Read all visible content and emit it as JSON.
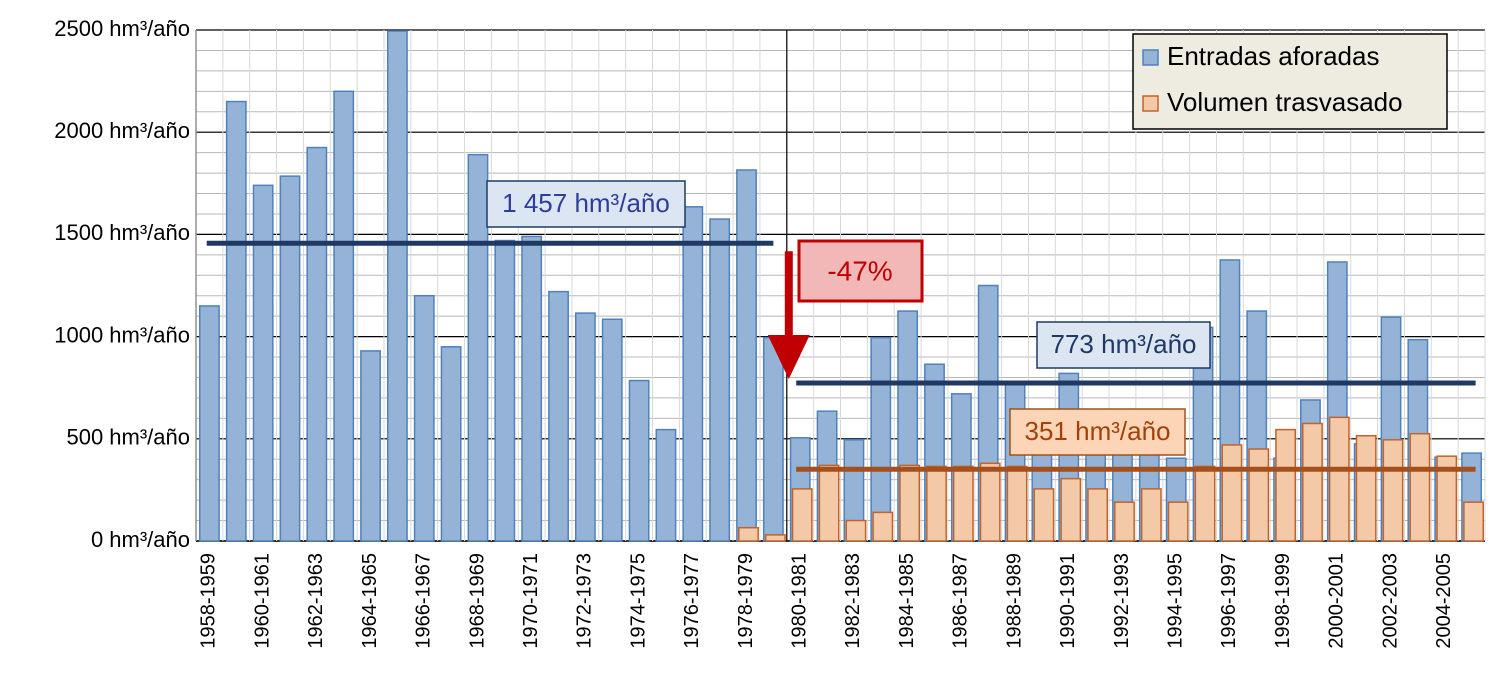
{
  "chart_data": {
    "type": "bar",
    "categories": [
      "1958-1959",
      null,
      "1960-1961",
      null,
      "1962-1963",
      null,
      "1964-1965",
      null,
      "1966-1967",
      null,
      "1968-1969",
      null,
      "1970-1971",
      null,
      "1972-1973",
      null,
      "1974-1975",
      null,
      "1976-1977",
      null,
      "1978-1979",
      null,
      "1980-1981",
      null,
      "1982-1983",
      null,
      "1984-1985",
      null,
      "1986-1987",
      null,
      "1988-1989",
      null,
      "1990-1991",
      null,
      "1992-1993",
      null,
      "1994-1995",
      null,
      "1996-1997",
      null,
      "1998-1999",
      null,
      "2000-2001",
      null,
      "2002-2003",
      null,
      "2004-2005",
      null
    ],
    "series": [
      {
        "name": "Entradas aforadas",
        "color": "#95b3d7",
        "stroke": "#4f81bd",
        "values": [
          1150,
          2150,
          1740,
          1785,
          1925,
          2200,
          930,
          2495,
          1200,
          950,
          1890,
          1470,
          1490,
          1220,
          1115,
          1085,
          785,
          545,
          1635,
          1575,
          1815,
          995,
          505,
          635,
          495,
          995,
          1125,
          865,
          720,
          1250,
          770,
          620,
          820,
          450,
          460,
          610,
          405,
          1045,
          1375,
          1125,
          405,
          690,
          1365,
          475,
          1095,
          985,
          410,
          430
        ]
      },
      {
        "name": "Volumen trasvasado",
        "color": "#f4c9a8",
        "stroke": "#c0642a",
        "values": [
          null,
          null,
          null,
          null,
          null,
          null,
          null,
          null,
          null,
          null,
          null,
          null,
          null,
          null,
          null,
          null,
          null,
          null,
          null,
          null,
          65,
          30,
          255,
          370,
          100,
          140,
          370,
          365,
          365,
          380,
          365,
          255,
          305,
          255,
          190,
          255,
          190,
          365,
          470,
          450,
          545,
          575,
          605,
          515,
          495,
          525,
          415,
          190
        ]
      }
    ],
    "ylim": [
      0,
      2500
    ],
    "yticks": [
      {
        "value": 0,
        "label": "0 hm³/año"
      },
      {
        "value": 500,
        "label": "500 hm³/año"
      },
      {
        "value": 1000,
        "label": "1000 hm³/año"
      },
      {
        "value": 1500,
        "label": "1500 hm³/año"
      },
      {
        "value": 2000,
        "label": "2000 hm³/año"
      },
      {
        "value": 2500,
        "label": "2500 hm³/año"
      }
    ],
    "minor_grid_step": 100,
    "grid": true,
    "legend": "top-right",
    "reference_lines": [
      {
        "label": "1 457 hm³/año",
        "value": 1457,
        "color": "#1f3864"
      },
      {
        "label": "773 hm³/año",
        "value": 773,
        "color": "#1f3864"
      },
      {
        "label": "351 hm³/año",
        "value": 351,
        "color": "#a4501c"
      }
    ],
    "change_label": "-47%"
  }
}
